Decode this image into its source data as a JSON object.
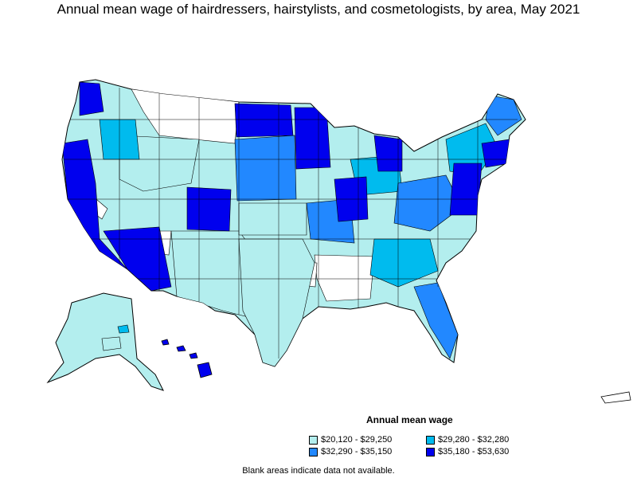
{
  "title": "Annual mean wage of hairdressers, hairstylists, and cosmetologists, by area, May 2021",
  "legend": {
    "title": "Annual mean wage",
    "items": [
      {
        "label": "$20,120 - $29,250",
        "color": "#b3eeee"
      },
      {
        "label": "$29,280 - $32,280",
        "color": "#00bbee"
      },
      {
        "label": "$32,290 - $35,150",
        "color": "#2288ff"
      },
      {
        "label": "$35,180 - $53,630",
        "color": "#0000ee"
      }
    ]
  },
  "footnote": "Blank areas indicate data not available.",
  "colors": {
    "outline": "#000000",
    "no_data": "#ffffff"
  }
}
